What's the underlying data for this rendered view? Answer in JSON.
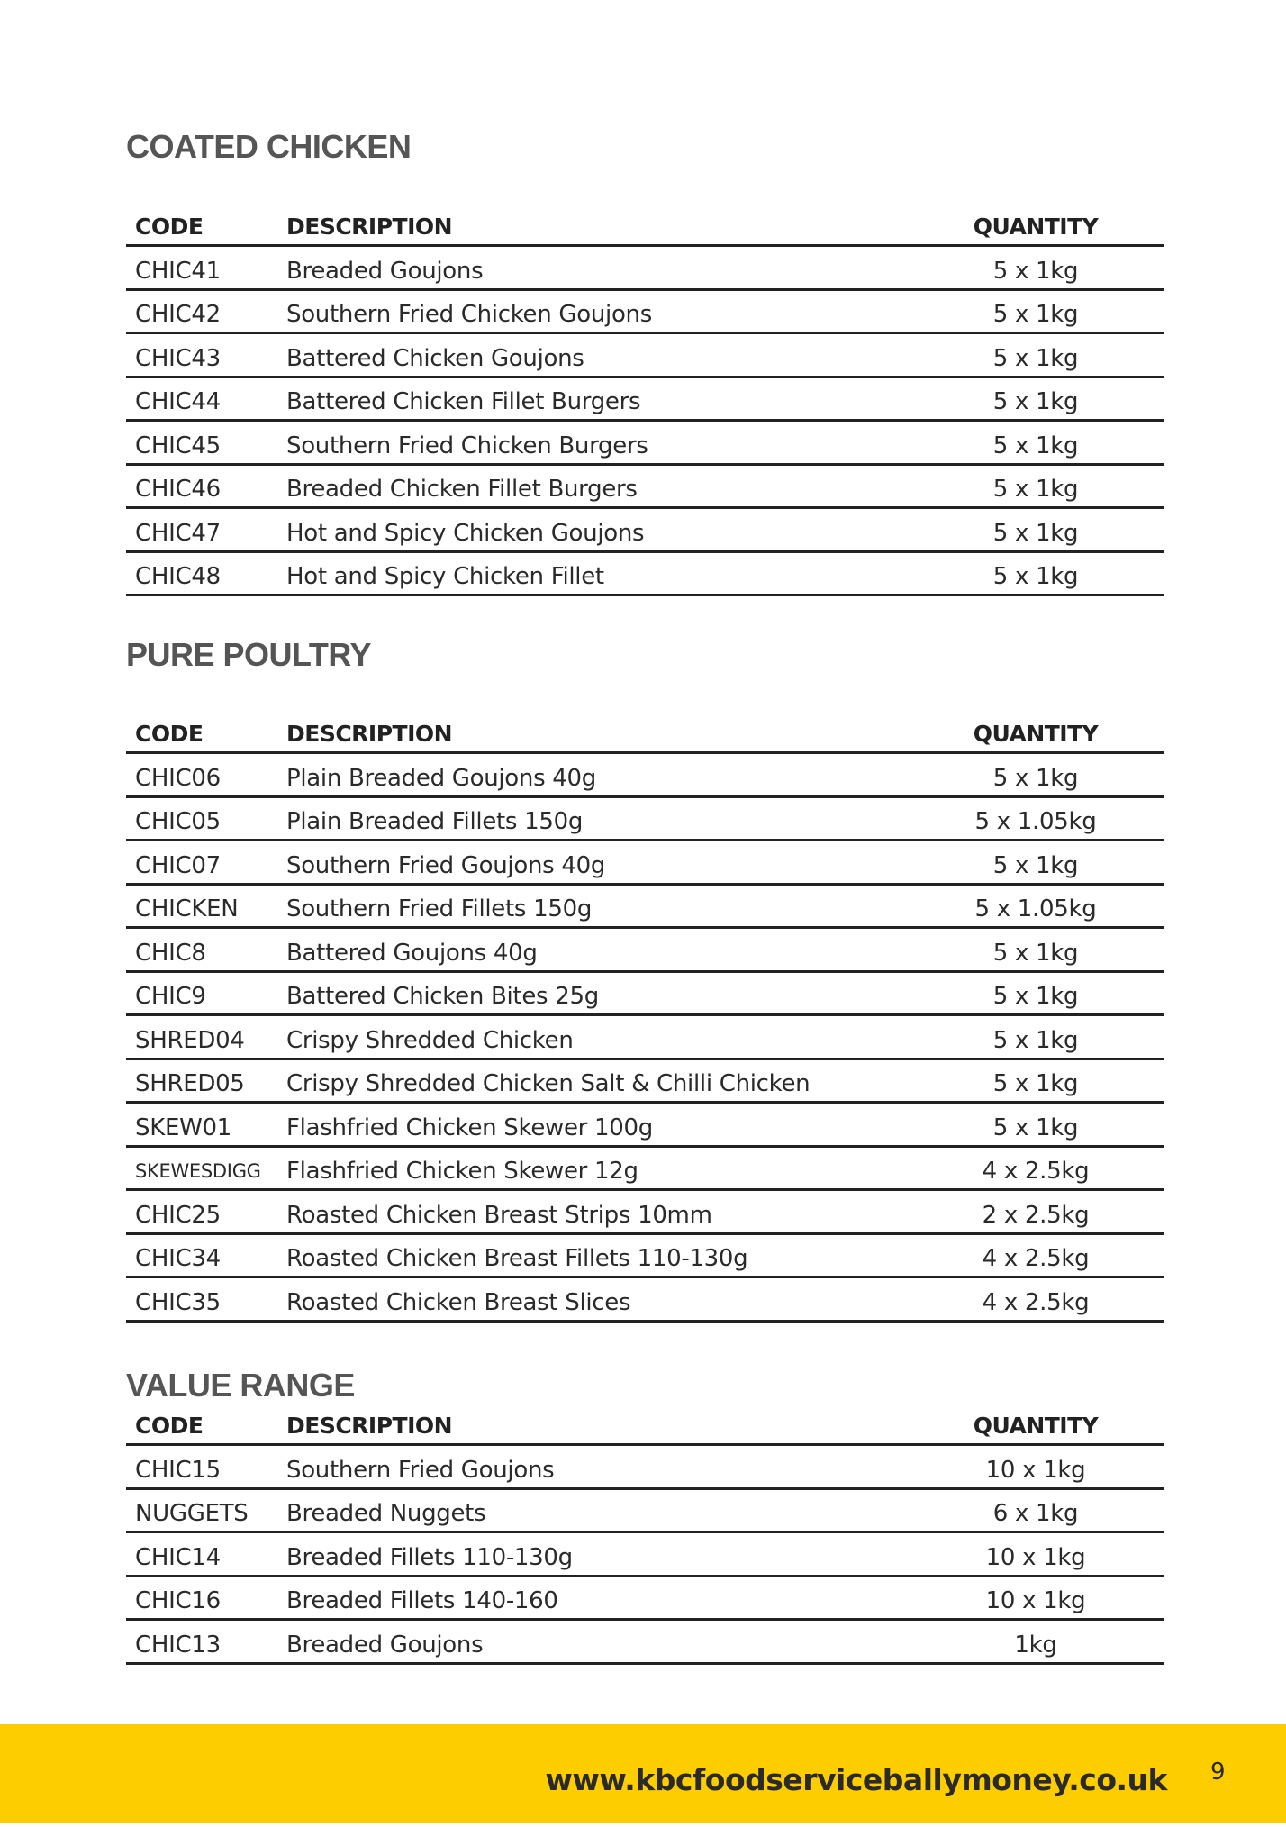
{
  "sections": [
    {
      "title": "COATED CHICKEN",
      "headers": [
        "CODE",
        "DESCRIPTION",
        "QUANTITY"
      ],
      "rows": [
        [
          "CHIC41",
          "Breaded Goujons",
          "5 x 1kg"
        ],
        [
          "CHIC42",
          "Southern Fried Chicken Goujons",
          "5 x 1kg"
        ],
        [
          "CHIC43",
          "Battered Chicken Goujons",
          "5 x 1kg"
        ],
        [
          "CHIC44",
          "Battered Chicken Fillet Burgers",
          "5 x 1kg"
        ],
        [
          "CHIC45",
          "Southern Fried Chicken Burgers",
          "5 x 1kg"
        ],
        [
          "CHIC46",
          "Breaded Chicken Fillet Burgers",
          "5 x 1kg"
        ],
        [
          "CHIC47",
          "Hot and Spicy Chicken Goujons",
          "5 x 1kg"
        ],
        [
          "CHIC48",
          "Hot and Spicy Chicken Fillet",
          "5 x 1kg"
        ]
      ]
    },
    {
      "title": "PURE POULTRY",
      "headers": [
        "CODE",
        "DESCRIPTION",
        "QUANTITY"
      ],
      "rows": [
        [
          "CHIC06",
          "Plain Breaded Goujons 40g",
          "5 x 1kg"
        ],
        [
          "CHIC05",
          "Plain Breaded Fillets 150g",
          "5 x 1.05kg"
        ],
        [
          "CHIC07",
          "Southern Fried Goujons 40g",
          "5 x 1kg"
        ],
        [
          "CHICKEN",
          "Southern Fried Fillets 150g",
          "5 x 1.05kg"
        ],
        [
          "CHIC8",
          "Battered Goujons 40g",
          "5 x 1kg"
        ],
        [
          "CHIC9",
          "Battered Chicken Bites 25g",
          "5 x 1kg"
        ],
        [
          "SHRED04",
          "Crispy Shredded Chicken",
          "5 x 1kg"
        ],
        [
          "SHRED05",
          "Crispy Shredded Chicken Salt & Chilli Chicken",
          "5 x 1kg"
        ],
        [
          "SKEW01",
          "Flashfried Chicken Skewer 100g",
          "5 x 1kg"
        ],
        [
          "SKEWESDIGG",
          "Flashfried Chicken Skewer 12g",
          "4 x 2.5kg"
        ],
        [
          "CHIC25",
          "Roasted Chicken Breast Strips 10mm",
          "2 x 2.5kg"
        ],
        [
          "CHIC34",
          "Roasted Chicken Breast Fillets 110-130g",
          "4 x 2.5kg"
        ],
        [
          "CHIC35",
          "Roasted Chicken Breast Slices",
          "4 x 2.5kg"
        ]
      ]
    },
    {
      "title": "VALUE RANGE",
      "headers": [
        "CODE",
        "DESCRIPTION",
        "QUANTITY"
      ],
      "rows": [
        [
          "CHIC15",
          "Southern Fried Goujons",
          "10 x 1kg"
        ],
        [
          "NUGGETS",
          "Breaded Nuggets",
          "6 x 1kg"
        ],
        [
          "CHIC14",
          "Breaded Fillets 110-130g",
          "10 x 1kg"
        ],
        [
          "CHIC16",
          "Breaded Fillets 140-160",
          "10 x 1kg"
        ],
        [
          "CHIC13",
          "Breaded Goujons",
          "1kg"
        ]
      ]
    }
  ],
  "footer": {
    "url": "www.kbcfoodserviceballymoney.co.uk",
    "page_number": "9"
  }
}
